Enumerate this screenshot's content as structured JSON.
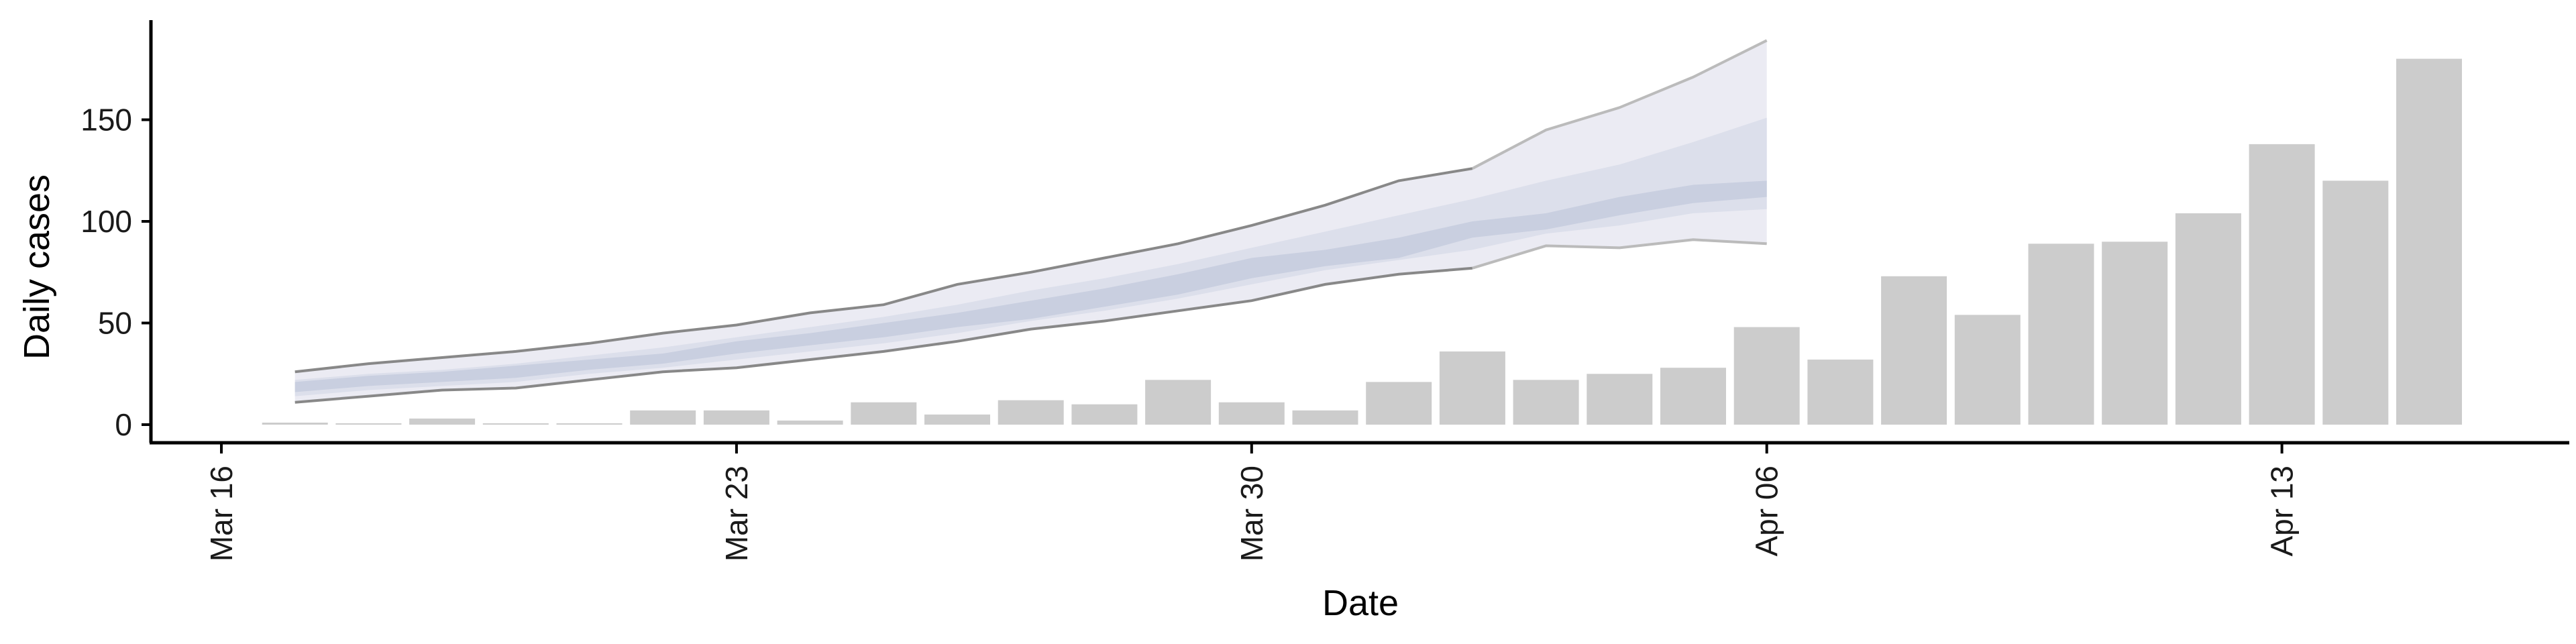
{
  "chart_data": {
    "type": "bar",
    "xlabel": "Date",
    "ylabel": "Daily cases",
    "ylim": [
      -8,
      198
    ],
    "yticks": [
      0,
      50,
      100,
      150
    ],
    "grid": false,
    "x_axis_ticks": [
      {
        "date": "2020-03-16",
        "label": "Mar 16"
      },
      {
        "date": "2020-03-23",
        "label": "Mar 23"
      },
      {
        "date": "2020-03-30",
        "label": "Mar 30"
      },
      {
        "date": "2020-04-06",
        "label": "Apr 06"
      },
      {
        "date": "2020-04-13",
        "label": "Apr 13"
      }
    ],
    "bars": {
      "color": "#cccccc",
      "dates": [
        "2020-03-17",
        "2020-03-18",
        "2020-03-19",
        "2020-03-20",
        "2020-03-21",
        "2020-03-22",
        "2020-03-23",
        "2020-03-24",
        "2020-03-25",
        "2020-03-26",
        "2020-03-27",
        "2020-03-28",
        "2020-03-29",
        "2020-03-30",
        "2020-03-31",
        "2020-04-01",
        "2020-04-02",
        "2020-04-03",
        "2020-04-04",
        "2020-04-05",
        "2020-04-06",
        "2020-04-07",
        "2020-04-08",
        "2020-04-09",
        "2020-04-10",
        "2020-04-11",
        "2020-04-12",
        "2020-04-13",
        "2020-04-14",
        "2020-04-15"
      ],
      "values": [
        1,
        0,
        3,
        0,
        0,
        7,
        7,
        2,
        11,
        5,
        12,
        10,
        22,
        11,
        7,
        21,
        36,
        22,
        25,
        28,
        48,
        32,
        73,
        54,
        89,
        90,
        104,
        138,
        120,
        180
      ]
    },
    "forecast": {
      "colors": {
        "outer": "#ebebf3",
        "middle": "#dcdfeb",
        "inner": "#c9cfe0",
        "line_dark": "#888888",
        "line_light": "#bbbbbb"
      },
      "dates": [
        "2020-03-17",
        "2020-03-18",
        "2020-03-19",
        "2020-03-20",
        "2020-03-21",
        "2020-03-22",
        "2020-03-23",
        "2020-03-24",
        "2020-03-25",
        "2020-03-26",
        "2020-03-27",
        "2020-03-28",
        "2020-03-29",
        "2020-03-30",
        "2020-03-31",
        "2020-04-01",
        "2020-04-02",
        "2020-04-03",
        "2020-04-04",
        "2020-04-05",
        "2020-04-06"
      ],
      "outer_lower": [
        11,
        14,
        17,
        18,
        22,
        26,
        28,
        32,
        36,
        41,
        47,
        51,
        56,
        61,
        69,
        74,
        77,
        88,
        87,
        91,
        89
      ],
      "outer_upper": [
        26,
        30,
        33,
        36,
        40,
        45,
        49,
        55,
        59,
        69,
        75,
        82,
        89,
        98,
        108,
        120,
        126,
        145,
        156,
        171,
        189
      ],
      "middle_lower": [
        14,
        17,
        19,
        21,
        25,
        28,
        32,
        36,
        40,
        45,
        51,
        56,
        62,
        69,
        76,
        81,
        86,
        94,
        98,
        104,
        106
      ],
      "middle_upper": [
        22,
        25,
        27,
        30,
        34,
        38,
        43,
        48,
        53,
        59,
        66,
        72,
        79,
        87,
        95,
        103,
        111,
        120,
        128,
        139,
        151
      ],
      "inner_lower": [
        16,
        19,
        21,
        23,
        27,
        30,
        35,
        39,
        43,
        48,
        52,
        58,
        64,
        72,
        78,
        82,
        92,
        96,
        103,
        109,
        112
      ],
      "inner_upper": [
        21,
        24,
        26,
        29,
        32,
        35,
        41,
        45,
        50,
        55,
        61,
        67,
        74,
        82,
        86,
        92,
        100,
        104,
        112,
        118,
        120
      ]
    }
  }
}
